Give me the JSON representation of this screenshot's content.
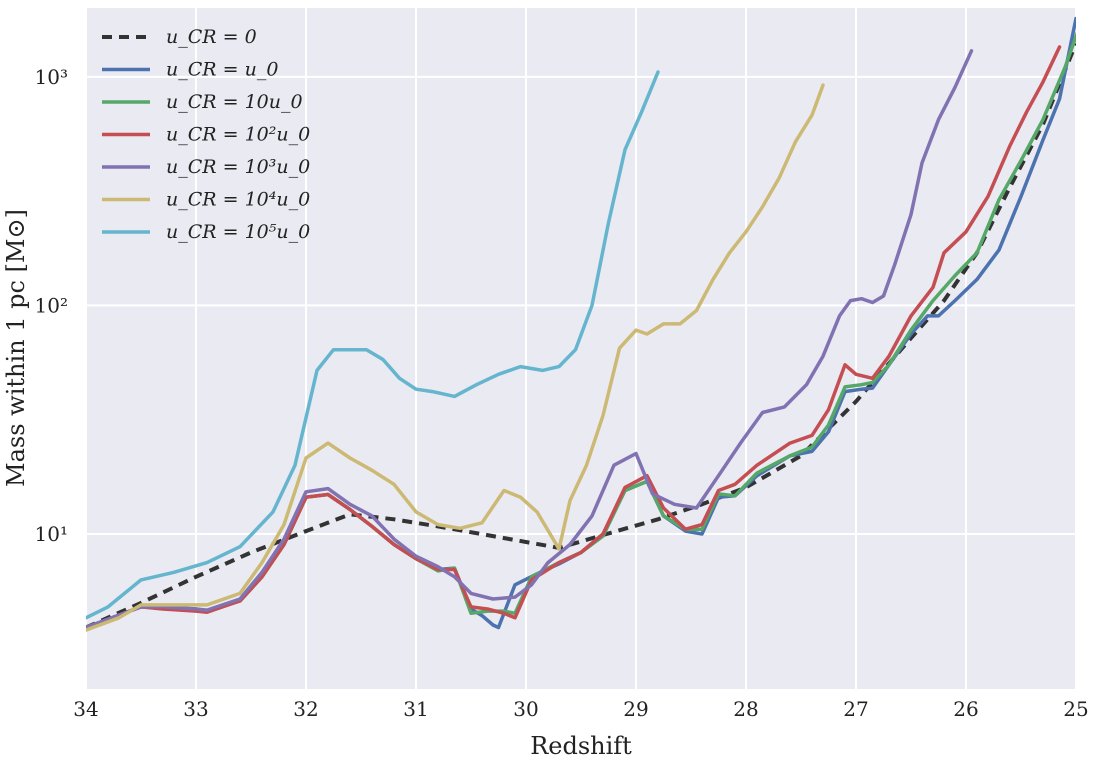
{
  "chart_data": {
    "type": "line",
    "xlabel": "Redshift",
    "ylabel": "Mass within 1 pc [M⊙]",
    "xlim": [
      34,
      25
    ],
    "x_reversed": true,
    "ylim": [
      2.1,
      2000
    ],
    "yscale": "log",
    "grid": true,
    "legend_position": "top-left",
    "x_ticks": [
      "34",
      "33",
      "32",
      "31",
      "30",
      "29",
      "28",
      "27",
      "26",
      "25"
    ],
    "y_ticks": [
      {
        "value": 10,
        "label": "10¹"
      },
      {
        "value": 100,
        "label": "10²"
      },
      {
        "value": 1000,
        "label": "10³"
      }
    ],
    "series": [
      {
        "name": "u_CR = 0",
        "color": "#333333",
        "dashed": true,
        "points": [
          [
            34,
            3.9
          ],
          [
            33.5,
            5.0
          ],
          [
            33,
            6.5
          ],
          [
            32.5,
            8.3
          ],
          [
            32,
            10.3
          ],
          [
            31.6,
            12.2
          ],
          [
            31.2,
            11.6
          ],
          [
            30.8,
            10.8
          ],
          [
            30.3,
            9.8
          ],
          [
            29.7,
            8.7
          ],
          [
            29.3,
            9.9
          ],
          [
            28.8,
            11.6
          ],
          [
            28.4,
            13.5
          ],
          [
            28,
            16.0
          ],
          [
            27.5,
            22.0
          ],
          [
            27,
            38.0
          ],
          [
            26.5,
            72.0
          ],
          [
            26.2,
            105
          ],
          [
            25.9,
            170
          ],
          [
            25.6,
            330
          ],
          [
            25.3,
            620
          ],
          [
            25,
            1400
          ]
        ]
      },
      {
        "name": "u_CR = u_0",
        "color": "#4c72b0",
        "dashed": false,
        "points": [
          [
            34,
            3.9
          ],
          [
            33.5,
            4.8
          ],
          [
            33.3,
            4.8
          ],
          [
            33,
            4.7
          ],
          [
            32.9,
            4.6
          ],
          [
            32.6,
            5.1
          ],
          [
            32.4,
            6.5
          ],
          [
            32.2,
            9.0
          ],
          [
            32,
            14.5
          ],
          [
            31.8,
            14.9
          ],
          [
            31.6,
            12.8
          ],
          [
            31.4,
            10.8
          ],
          [
            31.2,
            9.0
          ],
          [
            31,
            7.8
          ],
          [
            30.8,
            7.0
          ],
          [
            30.65,
            7.1
          ],
          [
            30.5,
            4.7
          ],
          [
            30.4,
            4.4
          ],
          [
            30.3,
            4.0
          ],
          [
            30.25,
            3.9
          ],
          [
            30.1,
            6.0
          ],
          [
            29.9,
            6.7
          ],
          [
            29.7,
            7.4
          ],
          [
            29.5,
            8.3
          ],
          [
            29.3,
            10.0
          ],
          [
            29.1,
            15.5
          ],
          [
            28.9,
            17.0
          ],
          [
            28.75,
            12.0
          ],
          [
            28.55,
            10.3
          ],
          [
            28.4,
            10.0
          ],
          [
            28.25,
            14.5
          ],
          [
            28.1,
            14.7
          ],
          [
            27.9,
            18.0
          ],
          [
            27.6,
            22.0
          ],
          [
            27.4,
            23.0
          ],
          [
            27.25,
            28.0
          ],
          [
            27.1,
            42.0
          ],
          [
            26.95,
            43.0
          ],
          [
            26.85,
            43.5
          ],
          [
            26.7,
            55.0
          ],
          [
            26.5,
            75.0
          ],
          [
            26.35,
            90.0
          ],
          [
            26.25,
            90.0
          ],
          [
            26.1,
            105.0
          ],
          [
            25.9,
            130.0
          ],
          [
            25.7,
            175.0
          ],
          [
            25.5,
            300.0
          ],
          [
            25.3,
            530.0
          ],
          [
            25.15,
            800.0
          ],
          [
            25,
            1800.0
          ]
        ]
      },
      {
        "name": "u_CR = 10u_0",
        "color": "#55a868",
        "dashed": false,
        "points": [
          [
            34,
            3.9
          ],
          [
            33.5,
            4.8
          ],
          [
            33,
            4.7
          ],
          [
            32.9,
            4.6
          ],
          [
            32.6,
            5.1
          ],
          [
            32.4,
            6.5
          ],
          [
            32.2,
            9.0
          ],
          [
            32,
            14.5
          ],
          [
            31.8,
            14.9
          ],
          [
            31.6,
            12.8
          ],
          [
            31.4,
            10.8
          ],
          [
            31.2,
            9.0
          ],
          [
            31,
            7.8
          ],
          [
            30.8,
            6.9
          ],
          [
            30.65,
            7.1
          ],
          [
            30.5,
            4.5
          ],
          [
            30.35,
            4.6
          ],
          [
            30.2,
            4.6
          ],
          [
            30.1,
            4.5
          ],
          [
            29.95,
            6.5
          ],
          [
            29.7,
            7.5
          ],
          [
            29.5,
            8.3
          ],
          [
            29.3,
            9.8
          ],
          [
            29.1,
            15.5
          ],
          [
            28.9,
            17.0
          ],
          [
            28.75,
            12.0
          ],
          [
            28.55,
            10.5
          ],
          [
            28.4,
            10.5
          ],
          [
            28.25,
            15.0
          ],
          [
            28.1,
            14.7
          ],
          [
            27.9,
            18.5
          ],
          [
            27.6,
            22.0
          ],
          [
            27.4,
            24.0
          ],
          [
            27.25,
            30.0
          ],
          [
            27.1,
            44.0
          ],
          [
            26.95,
            45.0
          ],
          [
            26.85,
            46.0
          ],
          [
            26.7,
            55.0
          ],
          [
            26.5,
            78.0
          ],
          [
            26.3,
            105.0
          ],
          [
            26.1,
            135.0
          ],
          [
            25.9,
            170.0
          ],
          [
            25.7,
            290.0
          ],
          [
            25.5,
            430.0
          ],
          [
            25.3,
            650.0
          ],
          [
            25.1,
            1100.0
          ],
          [
            24.98,
            1600.0
          ]
        ]
      },
      {
        "name": "u_CR = 10²u_0",
        "color": "#c44e52",
        "dashed": false,
        "points": [
          [
            34,
            3.9
          ],
          [
            33.5,
            4.8
          ],
          [
            33.3,
            4.7
          ],
          [
            33,
            4.6
          ],
          [
            32.9,
            4.55
          ],
          [
            32.6,
            5.1
          ],
          [
            32.4,
            6.5
          ],
          [
            32.2,
            9.0
          ],
          [
            32,
            14.5
          ],
          [
            31.8,
            14.9
          ],
          [
            31.6,
            12.8
          ],
          [
            31.4,
            10.8
          ],
          [
            31.2,
            9.0
          ],
          [
            31,
            7.8
          ],
          [
            30.8,
            7.0
          ],
          [
            30.65,
            7.0
          ],
          [
            30.5,
            4.8
          ],
          [
            30.35,
            4.7
          ],
          [
            30.2,
            4.5
          ],
          [
            30.1,
            4.3
          ],
          [
            29.95,
            6.3
          ],
          [
            29.7,
            7.5
          ],
          [
            29.5,
            8.3
          ],
          [
            29.3,
            10.0
          ],
          [
            29.1,
            16.0
          ],
          [
            28.9,
            18.0
          ],
          [
            28.75,
            13.0
          ],
          [
            28.55,
            10.5
          ],
          [
            28.4,
            11.0
          ],
          [
            28.25,
            15.5
          ],
          [
            28.1,
            16.5
          ],
          [
            27.9,
            20.0
          ],
          [
            27.6,
            25.0
          ],
          [
            27.4,
            27.0
          ],
          [
            27.25,
            35.0
          ],
          [
            27.1,
            55.0
          ],
          [
            27.0,
            50.0
          ],
          [
            26.85,
            48.0
          ],
          [
            26.7,
            60.0
          ],
          [
            26.5,
            90.0
          ],
          [
            26.3,
            120.0
          ],
          [
            26.2,
            170.0
          ],
          [
            26.0,
            210.0
          ],
          [
            25.8,
            300.0
          ],
          [
            25.6,
            500.0
          ],
          [
            25.45,
            700.0
          ],
          [
            25.3,
            950.0
          ],
          [
            25.15,
            1350.0
          ]
        ]
      },
      {
        "name": "u_CR = 10³u_0",
        "color": "#8172b2",
        "dashed": false,
        "points": [
          [
            34,
            3.9
          ],
          [
            33.5,
            4.8
          ],
          [
            33.3,
            4.8
          ],
          [
            33,
            4.7
          ],
          [
            32.9,
            4.65
          ],
          [
            32.6,
            5.2
          ],
          [
            32.4,
            6.8
          ],
          [
            32.2,
            9.5
          ],
          [
            32,
            15.3
          ],
          [
            31.8,
            15.8
          ],
          [
            31.6,
            13.5
          ],
          [
            31.4,
            12.0
          ],
          [
            31.2,
            9.5
          ],
          [
            31,
            8.0
          ],
          [
            30.8,
            7.2
          ],
          [
            30.65,
            6.5
          ],
          [
            30.5,
            5.5
          ],
          [
            30.3,
            5.2
          ],
          [
            30.1,
            5.3
          ],
          [
            29.95,
            6.0
          ],
          [
            29.8,
            7.5
          ],
          [
            29.6,
            9.0
          ],
          [
            29.4,
            12.0
          ],
          [
            29.2,
            20.0
          ],
          [
            29.0,
            22.5
          ],
          [
            28.85,
            15.0
          ],
          [
            28.65,
            13.5
          ],
          [
            28.45,
            13.0
          ],
          [
            28.25,
            18.0
          ],
          [
            28.05,
            25.0
          ],
          [
            27.85,
            34.0
          ],
          [
            27.65,
            36.0
          ],
          [
            27.45,
            45.0
          ],
          [
            27.3,
            60.0
          ],
          [
            27.15,
            90.0
          ],
          [
            27.05,
            105.0
          ],
          [
            26.95,
            107.0
          ],
          [
            26.85,
            103.0
          ],
          [
            26.75,
            110.0
          ],
          [
            26.65,
            150.0
          ],
          [
            26.5,
            250.0
          ],
          [
            26.4,
            420.0
          ],
          [
            26.25,
            650.0
          ],
          [
            26.1,
            900.0
          ],
          [
            25.95,
            1300.0
          ]
        ]
      },
      {
        "name": "u_CR = 10⁴u_0",
        "color": "#ccb974",
        "dashed": false,
        "points": [
          [
            34,
            3.8
          ],
          [
            33.7,
            4.3
          ],
          [
            33.5,
            4.9
          ],
          [
            33.2,
            4.9
          ],
          [
            32.9,
            4.9
          ],
          [
            32.6,
            5.5
          ],
          [
            32.4,
            7.5
          ],
          [
            32.2,
            11.0
          ],
          [
            32,
            21.5
          ],
          [
            31.8,
            25.0
          ],
          [
            31.6,
            21.5
          ],
          [
            31.4,
            19.0
          ],
          [
            31.2,
            16.5
          ],
          [
            31,
            12.5
          ],
          [
            30.8,
            11.0
          ],
          [
            30.6,
            10.6
          ],
          [
            30.4,
            11.2
          ],
          [
            30.2,
            15.5
          ],
          [
            30.05,
            14.5
          ],
          [
            29.9,
            12.5
          ],
          [
            29.7,
            8.6
          ],
          [
            29.6,
            14.0
          ],
          [
            29.45,
            20.0
          ],
          [
            29.3,
            33.0
          ],
          [
            29.15,
            65.0
          ],
          [
            29.0,
            78.0
          ],
          [
            28.9,
            75.0
          ],
          [
            28.75,
            83.0
          ],
          [
            28.6,
            83.0
          ],
          [
            28.45,
            95.0
          ],
          [
            28.3,
            130.0
          ],
          [
            28.15,
            170.0
          ],
          [
            28.0,
            210.0
          ],
          [
            27.85,
            270.0
          ],
          [
            27.7,
            360.0
          ],
          [
            27.55,
            520.0
          ],
          [
            27.4,
            680.0
          ],
          [
            27.3,
            920.0
          ]
        ]
      },
      {
        "name": "u_CR = 10⁵u_0",
        "color": "#64b5cd",
        "dashed": false,
        "points": [
          [
            34,
            4.3
          ],
          [
            33.8,
            4.8
          ],
          [
            33.5,
            6.3
          ],
          [
            33.2,
            6.8
          ],
          [
            32.9,
            7.5
          ],
          [
            32.6,
            8.8
          ],
          [
            32.3,
            12.5
          ],
          [
            32.1,
            20.0
          ],
          [
            31.9,
            52.0
          ],
          [
            31.75,
            64.0
          ],
          [
            31.6,
            64.0
          ],
          [
            31.45,
            64.0
          ],
          [
            31.3,
            58.0
          ],
          [
            31.15,
            48.0
          ],
          [
            31.0,
            43.0
          ],
          [
            30.85,
            42.0
          ],
          [
            30.65,
            40.0
          ],
          [
            30.45,
            45.0
          ],
          [
            30.25,
            50.0
          ],
          [
            30.05,
            54.0
          ],
          [
            29.85,
            52.0
          ],
          [
            29.7,
            54.0
          ],
          [
            29.55,
            64.0
          ],
          [
            29.4,
            100.0
          ],
          [
            29.25,
            230.0
          ],
          [
            29.1,
            480.0
          ],
          [
            28.95,
            700.0
          ],
          [
            28.8,
            1050.0
          ]
        ]
      }
    ]
  }
}
